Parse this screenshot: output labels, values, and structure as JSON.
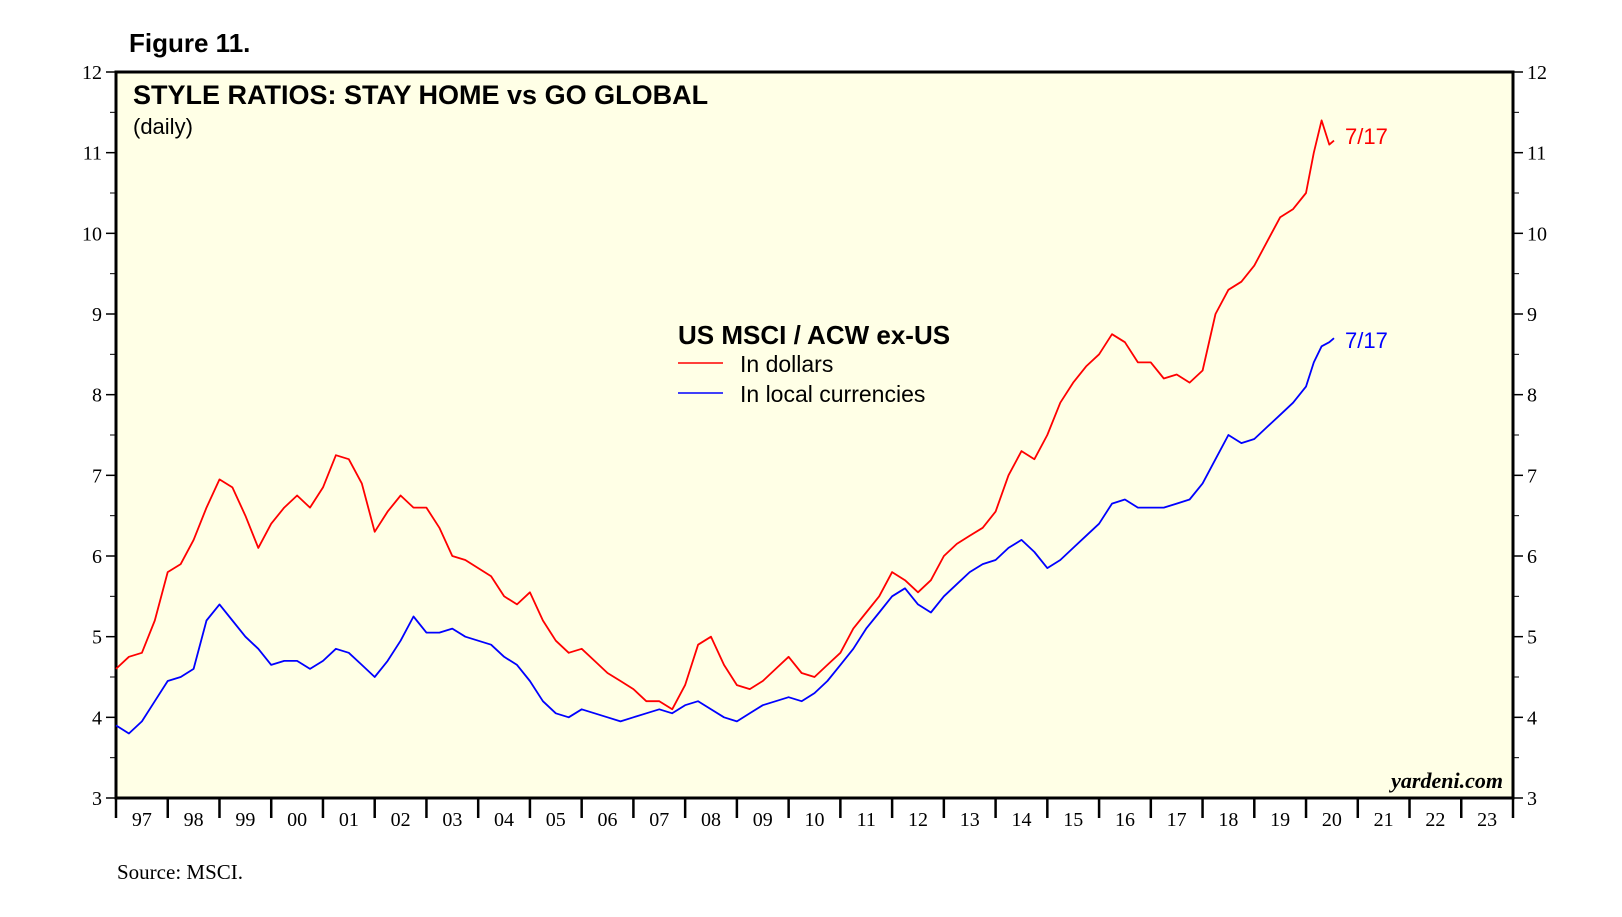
{
  "figure_label": "Figure 11.",
  "source": "Source: MSCI.",
  "colors": {
    "panel_bg": "#ffffe6",
    "dollars": "#ff0000",
    "local": "#0000ff",
    "axis": "#000000"
  },
  "chart_data": {
    "type": "line",
    "title": "STYLE RATIOS: STAY HOME vs GO GLOBAL",
    "subtitle": "(daily)",
    "legend_title": "US MSCI / ACW ex-US",
    "legend_placement": "center",
    "watermark": "yardeni.com",
    "ylim": [
      3,
      12
    ],
    "y_ticks": [
      3,
      4,
      5,
      6,
      7,
      8,
      9,
      10,
      11,
      12
    ],
    "y_tick_labels": [
      "3",
      "4",
      "5",
      "6",
      "7",
      "8",
      "9",
      "10",
      "11",
      "12"
    ],
    "x_range": [
      1997.0,
      2024.0
    ],
    "x_tick_labels": [
      "97",
      "98",
      "99",
      "00",
      "01",
      "02",
      "03",
      "04",
      "05",
      "06",
      "07",
      "08",
      "09",
      "10",
      "11",
      "12",
      "13",
      "14",
      "15",
      "16",
      "17",
      "18",
      "19",
      "20",
      "21",
      "22",
      "23"
    ],
    "series": [
      {
        "name": "In dollars",
        "color": "#ff0000",
        "end_label": "7/17",
        "x": [
          1997.0,
          1997.25,
          1997.5,
          1997.75,
          1998.0,
          1998.25,
          1998.5,
          1998.75,
          1999.0,
          1999.25,
          1999.5,
          1999.75,
          2000.0,
          2000.25,
          2000.5,
          2000.75,
          2001.0,
          2001.25,
          2001.5,
          2001.75,
          2002.0,
          2002.25,
          2002.5,
          2002.75,
          2003.0,
          2003.25,
          2003.5,
          2003.75,
          2004.0,
          2004.25,
          2004.5,
          2004.75,
          2005.0,
          2005.25,
          2005.5,
          2005.75,
          2006.0,
          2006.25,
          2006.5,
          2006.75,
          2007.0,
          2007.25,
          2007.5,
          2007.75,
          2008.0,
          2008.25,
          2008.5,
          2008.75,
          2009.0,
          2009.25,
          2009.5,
          2009.75,
          2010.0,
          2010.25,
          2010.5,
          2010.75,
          2011.0,
          2011.25,
          2011.5,
          2011.75,
          2012.0,
          2012.25,
          2012.5,
          2012.75,
          2013.0,
          2013.25,
          2013.5,
          2013.75,
          2014.0,
          2014.25,
          2014.5,
          2014.75,
          2015.0,
          2015.25,
          2015.5,
          2015.75,
          2016.0,
          2016.25,
          2016.5,
          2016.75,
          2017.0,
          2017.25,
          2017.5,
          2017.75,
          2018.0,
          2018.25,
          2018.5,
          2018.75,
          2019.0,
          2019.25,
          2019.5,
          2019.75,
          2020.0,
          2020.15,
          2020.3,
          2020.45,
          2020.54
        ],
        "values": [
          4.6,
          4.75,
          4.8,
          5.2,
          5.8,
          5.9,
          6.2,
          6.6,
          6.95,
          6.85,
          6.5,
          6.1,
          6.4,
          6.6,
          6.75,
          6.6,
          6.85,
          7.25,
          7.2,
          6.9,
          6.3,
          6.55,
          6.75,
          6.6,
          6.6,
          6.35,
          6.0,
          5.95,
          5.85,
          5.75,
          5.5,
          5.4,
          5.55,
          5.2,
          4.95,
          4.8,
          4.85,
          4.7,
          4.55,
          4.45,
          4.35,
          4.2,
          4.2,
          4.1,
          4.4,
          4.9,
          5.0,
          4.65,
          4.4,
          4.35,
          4.45,
          4.6,
          4.75,
          4.55,
          4.5,
          4.65,
          4.8,
          5.1,
          5.3,
          5.5,
          5.8,
          5.7,
          5.55,
          5.7,
          6.0,
          6.15,
          6.25,
          6.35,
          6.55,
          7.0,
          7.3,
          7.2,
          7.5,
          7.9,
          8.15,
          8.35,
          8.5,
          8.75,
          8.65,
          8.4,
          8.4,
          8.2,
          8.25,
          8.15,
          8.3,
          9.0,
          9.3,
          9.4,
          9.6,
          9.9,
          10.2,
          10.3,
          10.5,
          11.0,
          11.4,
          11.1,
          11.15
        ]
      },
      {
        "name": "In local currencies",
        "color": "#0000ff",
        "end_label": "7/17",
        "x": [
          1997.0,
          1997.25,
          1997.5,
          1997.75,
          1998.0,
          1998.25,
          1998.5,
          1998.75,
          1999.0,
          1999.25,
          1999.5,
          1999.75,
          2000.0,
          2000.25,
          2000.5,
          2000.75,
          2001.0,
          2001.25,
          2001.5,
          2001.75,
          2002.0,
          2002.25,
          2002.5,
          2002.75,
          2003.0,
          2003.25,
          2003.5,
          2003.75,
          2004.0,
          2004.25,
          2004.5,
          2004.75,
          2005.0,
          2005.25,
          2005.5,
          2005.75,
          2006.0,
          2006.25,
          2006.5,
          2006.75,
          2007.0,
          2007.25,
          2007.5,
          2007.75,
          2008.0,
          2008.25,
          2008.5,
          2008.75,
          2009.0,
          2009.25,
          2009.5,
          2009.75,
          2010.0,
          2010.25,
          2010.5,
          2010.75,
          2011.0,
          2011.25,
          2011.5,
          2011.75,
          2012.0,
          2012.25,
          2012.5,
          2012.75,
          2013.0,
          2013.25,
          2013.5,
          2013.75,
          2014.0,
          2014.25,
          2014.5,
          2014.75,
          2015.0,
          2015.25,
          2015.5,
          2015.75,
          2016.0,
          2016.25,
          2016.5,
          2016.75,
          2017.0,
          2017.25,
          2017.5,
          2017.75,
          2018.0,
          2018.25,
          2018.5,
          2018.75,
          2019.0,
          2019.25,
          2019.5,
          2019.75,
          2020.0,
          2020.15,
          2020.3,
          2020.45,
          2020.54
        ],
        "values": [
          3.9,
          3.8,
          3.95,
          4.2,
          4.45,
          4.5,
          4.6,
          5.2,
          5.4,
          5.2,
          5.0,
          4.85,
          4.65,
          4.7,
          4.7,
          4.6,
          4.7,
          4.85,
          4.8,
          4.65,
          4.5,
          4.7,
          4.95,
          5.25,
          5.05,
          5.05,
          5.1,
          5.0,
          4.95,
          4.9,
          4.75,
          4.65,
          4.45,
          4.2,
          4.05,
          4.0,
          4.1,
          4.05,
          4.0,
          3.95,
          4.0,
          4.05,
          4.1,
          4.05,
          4.15,
          4.2,
          4.1,
          4.0,
          3.95,
          4.05,
          4.15,
          4.2,
          4.25,
          4.2,
          4.3,
          4.45,
          4.65,
          4.85,
          5.1,
          5.3,
          5.5,
          5.6,
          5.4,
          5.3,
          5.5,
          5.65,
          5.8,
          5.9,
          5.95,
          6.1,
          6.2,
          6.05,
          5.85,
          5.95,
          6.1,
          6.25,
          6.4,
          6.65,
          6.7,
          6.6,
          6.6,
          6.6,
          6.65,
          6.7,
          6.9,
          7.2,
          7.5,
          7.4,
          7.45,
          7.6,
          7.75,
          7.9,
          8.1,
          8.4,
          8.6,
          8.65,
          8.7
        ]
      }
    ]
  }
}
